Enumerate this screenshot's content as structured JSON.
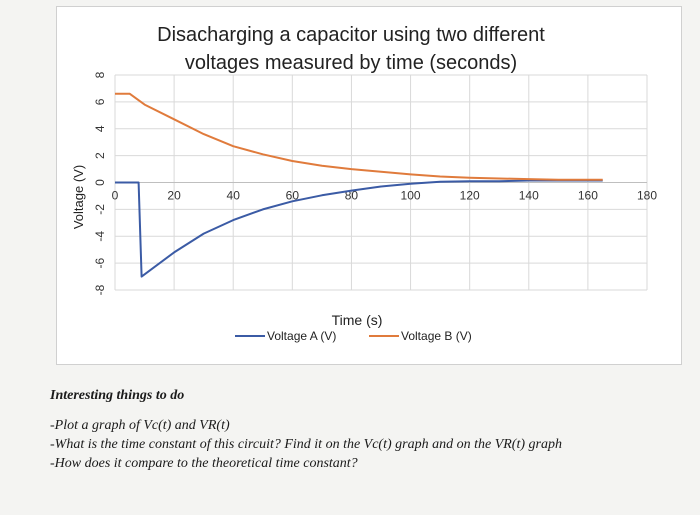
{
  "chart_data": {
    "type": "line",
    "title_lines": [
      "Disacharging a capacitor using two different",
      "voltages measured by time (seconds)"
    ],
    "xlabel": "Time (s)",
    "ylabel": "Voltage (V)",
    "xlim": [
      0,
      180
    ],
    "ylim": [
      -8,
      8
    ],
    "x_ticks": [
      0,
      20,
      40,
      60,
      80,
      100,
      120,
      140,
      160,
      180
    ],
    "x_tick_labels": [
      "0",
      "20",
      "40",
      "60",
      "80",
      "100",
      "120",
      "140",
      "160",
      "180"
    ],
    "y_ticks": [
      8,
      6,
      4,
      2,
      0,
      -2,
      -4,
      -6,
      -8
    ],
    "y_tick_labels": [
      "8",
      "6",
      "4",
      "2",
      "0",
      "-2",
      "-4",
      "-6",
      "-8"
    ],
    "grid": true,
    "legend_position": "bottom",
    "series": [
      {
        "name": "Voltage A (V)",
        "color": "#3b5ba5",
        "x": [
          0,
          8,
          9,
          20,
          30,
          40,
          50,
          60,
          70,
          80,
          90,
          100,
          110,
          120,
          130,
          140,
          150,
          165
        ],
        "y": [
          0,
          0,
          -7,
          -5.2,
          -3.8,
          -2.8,
          -2.0,
          -1.4,
          -0.95,
          -0.6,
          -0.3,
          -0.1,
          0.05,
          0.1,
          0.1,
          0.15,
          0.15,
          0.15
        ]
      },
      {
        "name": "Voltage B (V)",
        "color": "#e07b3c",
        "x": [
          0,
          5,
          10,
          20,
          30,
          40,
          50,
          60,
          70,
          80,
          90,
          100,
          110,
          120,
          130,
          140,
          150,
          165
        ],
        "y": [
          6.6,
          6.6,
          5.8,
          4.7,
          3.6,
          2.7,
          2.1,
          1.6,
          1.25,
          1.0,
          0.8,
          0.6,
          0.45,
          0.35,
          0.3,
          0.25,
          0.2,
          0.2
        ]
      }
    ]
  },
  "notes": {
    "heading": "Interesting things to do",
    "lines": [
      "-Plot a graph of Vc(t) and VR(t)",
      "-What is the time constant of this circuit? Find it on the Vc(t) graph and on the VR(t) graph",
      "-How does it compare to the theoretical time constant?"
    ]
  }
}
